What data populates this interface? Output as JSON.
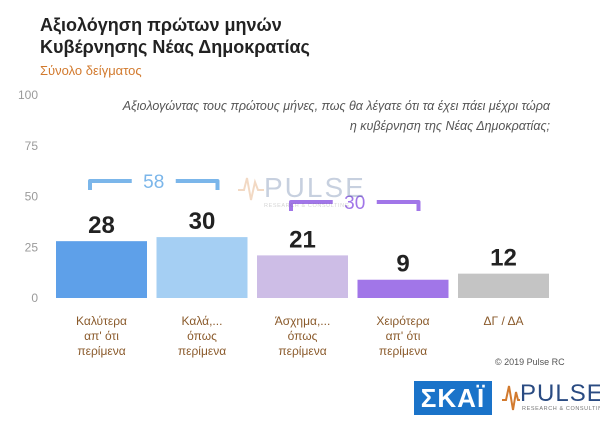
{
  "header": {
    "title_line1": "Αξιολόγηση πρώτων μηνών",
    "title_line2": "Κυβέρνησης Νέας Δημοκρατίας",
    "subtitle": "Σύνολο δείγματος"
  },
  "question": {
    "line1": "Αξιολογώντας τους πρώτους μήνες, πως θα λέγατε ότι τα έχει πάει μέχρι τώρα",
    "line2": "η κυβέρνηση της Νέας Δημοκρατίας;"
  },
  "copyright": "© 2019 Pulse RC",
  "logos": {
    "skai": "ΣΚΑΪ",
    "pulse": "PULSE",
    "pulse_sub": "RESEARCH & CONSULTING"
  },
  "colors": {
    "bar1": "#5ea0e9",
    "bar2": "#a5cff3",
    "bar3": "#cdbde6",
    "bar4": "#a176e8",
    "bar5": "#c4c4c4",
    "bracket_positive": "#7bb6ea",
    "bracket_negative": "#a176e8",
    "category_text": "#8a5a2b",
    "axis_text": "#9a9a9a",
    "value_text": "#222222"
  },
  "chart_data": {
    "type": "bar",
    "categories": [
      [
        "Καλύτερα",
        "απ' ότι",
        "περίμενα"
      ],
      [
        "Καλά,...",
        "όπως",
        "περίμενα"
      ],
      [
        "Άσχημα,...",
        "όπως",
        "περίμενα"
      ],
      [
        "Χειρότερα",
        "απ' ότι",
        "περίμενα"
      ],
      [
        "ΔΓ / ΔΑ"
      ]
    ],
    "values": [
      28,
      30,
      21,
      9,
      12
    ],
    "ylim": [
      0,
      100
    ],
    "yticks": [
      0,
      25,
      50,
      75,
      100
    ],
    "grid": false,
    "annotations": [
      {
        "label": "58",
        "span": [
          0,
          1
        ],
        "kind": "positive"
      },
      {
        "label": "30",
        "span": [
          2,
          3
        ],
        "kind": "negative"
      }
    ]
  }
}
